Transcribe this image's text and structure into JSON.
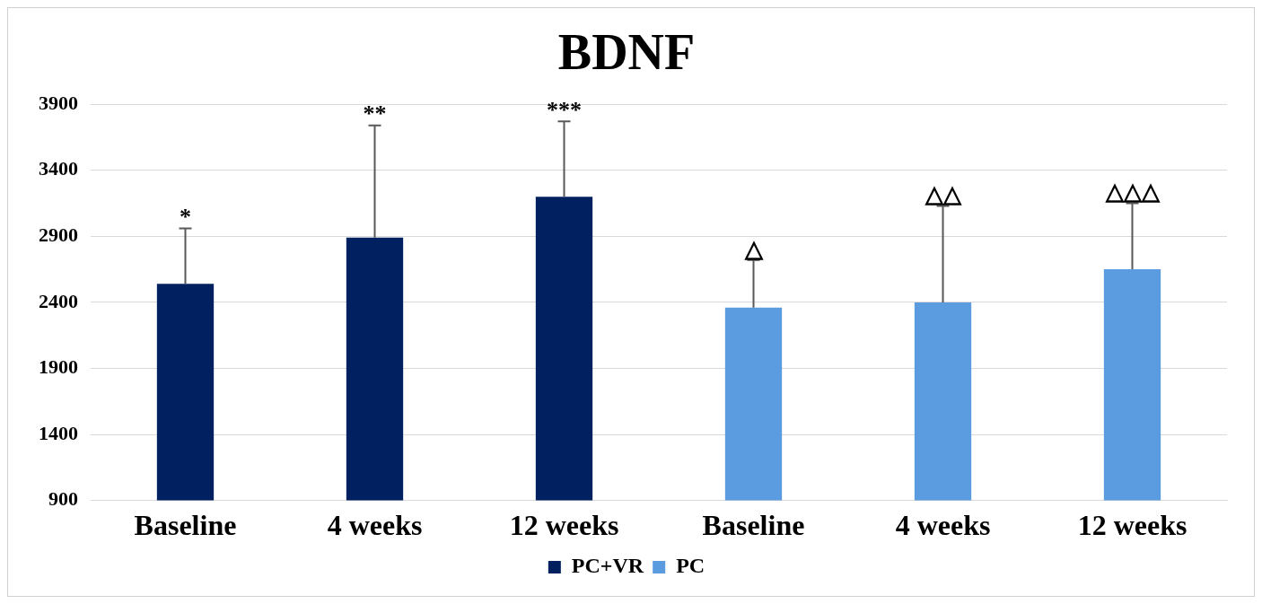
{
  "chart_data": {
    "type": "bar",
    "title": "BDNF",
    "categories": [
      "Baseline",
      "4 weeks",
      "12 weeks",
      "Baseline",
      "4 weeks",
      "12 weeks"
    ],
    "series": [
      {
        "name": "PC+VR",
        "color": "#002060",
        "values": [
          2540,
          2890,
          3200,
          null,
          null,
          null
        ],
        "errors": [
          [
            2540,
            2960
          ],
          [
            2890,
            3740
          ],
          [
            3200,
            3770
          ],
          null,
          null,
          null
        ]
      },
      {
        "name": "PC",
        "color": "#5b9bdf",
        "values": [
          null,
          null,
          null,
          2360,
          2400,
          2650
        ],
        "errors": [
          null,
          null,
          null,
          [
            2360,
            2720
          ],
          [
            2400,
            3130
          ],
          [
            2650,
            3150
          ]
        ]
      }
    ],
    "annotations": [
      {
        "text": "*",
        "x": "Baseline",
        "y": 2960
      },
      {
        "text": "**",
        "x": "4 weeks",
        "y": 3740
      },
      {
        "text": "***",
        "x": "12 weeks",
        "y": 3770
      },
      "△",
      "△△",
      "△△△"
    ],
    "ylim": [
      900,
      3900
    ],
    "yticks": [
      900,
      1400,
      1900,
      2400,
      2900,
      3400,
      3900
    ],
    "grid": "y",
    "legend": "bottom"
  }
}
